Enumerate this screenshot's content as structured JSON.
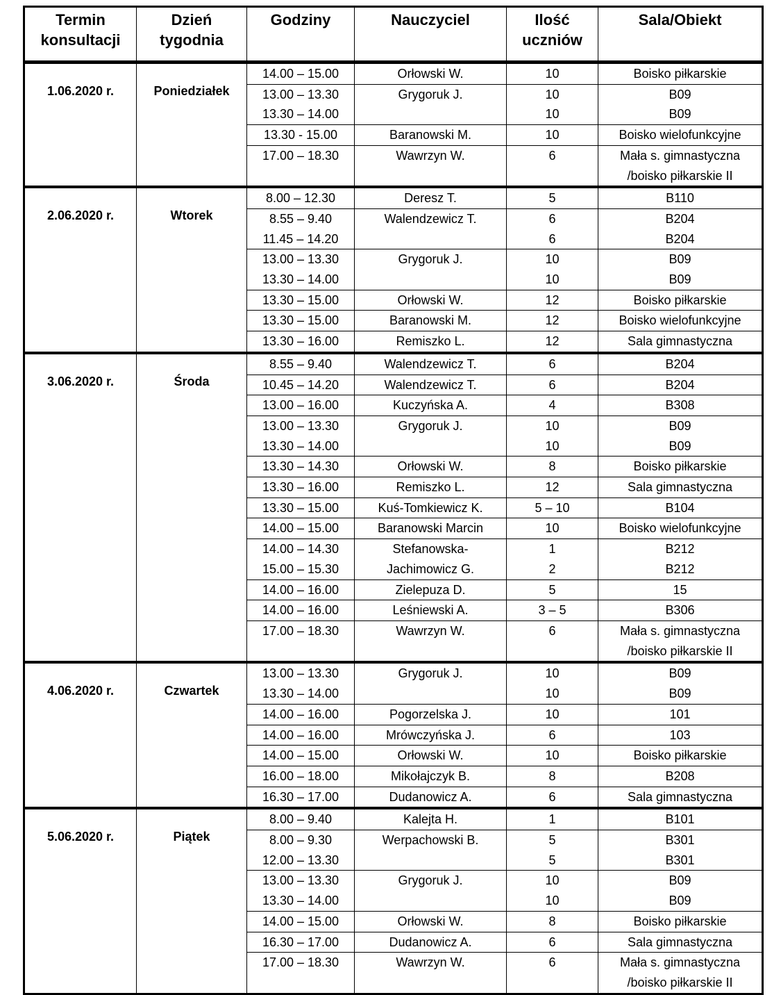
{
  "headers": [
    "Termin\nkonsultacji",
    "Dzień\ntygodnia",
    "Godziny",
    "Nauczyciel",
    "Ilość\nuczniów",
    "Sala/Obiekt"
  ],
  "sections": [
    {
      "date": "1.06.2020 r.",
      "day": "Poniedziałek",
      "groups": [
        {
          "teacher": "Orłowski W.",
          "lines": [
            {
              "hours": "14.00 – 15.00",
              "count": "10",
              "room": "Boisko piłkarskie"
            }
          ]
        },
        {
          "teacher": "Grygoruk J.",
          "lines": [
            {
              "hours": "13.00 – 13.30",
              "count": "10",
              "room": "B09"
            },
            {
              "hours": "13.30 – 14.00",
              "count": "10",
              "room": "B09"
            }
          ]
        },
        {
          "teacher": "Baranowski M.",
          "lines": [
            {
              "hours": "13.30 - 15.00",
              "count": "10",
              "room": "Boisko wielofunkcyjne"
            }
          ]
        },
        {
          "teacher": "Wawrzyn W.",
          "lines": [
            {
              "hours": "17.00 – 18.30",
              "count": "6",
              "room": "Mała s. gimnastyczna\n/boisko piłkarskie II"
            }
          ]
        }
      ]
    },
    {
      "date": "2.06.2020 r.",
      "day": "Wtorek",
      "groups": [
        {
          "teacher": "Deresz T.",
          "lines": [
            {
              "hours": "8.00 – 12.30",
              "count": "5",
              "room": "B110"
            }
          ]
        },
        {
          "teacher": "Walendzewicz T.",
          "lines": [
            {
              "hours": "8.55 – 9.40",
              "count": "6",
              "room": "B204"
            },
            {
              "hours": "11.45 – 14.20",
              "count": "6",
              "room": "B204"
            }
          ]
        },
        {
          "teacher": "Grygoruk J.",
          "lines": [
            {
              "hours": "13.00 – 13.30",
              "count": "10",
              "room": "B09"
            },
            {
              "hours": "13.30 – 14.00",
              "count": "10",
              "room": "B09"
            }
          ]
        },
        {
          "teacher": "Orłowski W.",
          "lines": [
            {
              "hours": "13.30 –  15.00",
              "count": "12",
              "room": "Boisko piłkarskie"
            }
          ]
        },
        {
          "teacher": "Baranowski M.",
          "lines": [
            {
              "hours": "13.30 – 15.00",
              "count": "12",
              "room": "Boisko wielofunkcyjne"
            }
          ]
        },
        {
          "teacher": "Remiszko L.",
          "lines": [
            {
              "hours": "13.30 – 16.00",
              "count": "12",
              "room": "Sala gimnastyczna"
            }
          ]
        }
      ]
    },
    {
      "date": "3.06.2020 r.",
      "day": "Środa",
      "groups": [
        {
          "teacher": "Walendzewicz T.",
          "lines": [
            {
              "hours": "8.55 – 9.40",
              "count": "6",
              "room": "B204"
            }
          ]
        },
        {
          "teacher": "Walendzewicz T.",
          "lines": [
            {
              "hours": "10.45 – 14.20",
              "count": "6",
              "room": "B204"
            }
          ]
        },
        {
          "teacher": "Kuczyńska A.",
          "lines": [
            {
              "hours": "13.00 – 16.00",
              "count": "4",
              "room": "B308"
            }
          ]
        },
        {
          "teacher": "Grygoruk J.",
          "lines": [
            {
              "hours": "13.00 – 13.30",
              "count": "10",
              "room": "B09"
            },
            {
              "hours": "13.30 – 14.00",
              "count": "10",
              "room": "B09"
            }
          ]
        },
        {
          "teacher": "Orłowski W.",
          "lines": [
            {
              "hours": "13.30 – 14.30",
              "count": "8",
              "room": "Boisko piłkarskie"
            }
          ]
        },
        {
          "teacher": "Remiszko L.",
          "lines": [
            {
              "hours": "13.30 – 16.00",
              "count": "12",
              "room": "Sala gimnastyczna"
            }
          ]
        },
        {
          "teacher": "Kuś-Tomkiewicz K.",
          "lines": [
            {
              "hours": "13.30 – 15.00",
              "count": "5 – 10",
              "room": "B104"
            }
          ]
        },
        {
          "teacher": "Baranowski Marcin",
          "lines": [
            {
              "hours": "14.00 – 15.00",
              "count": "10",
              "room": "Boisko wielofunkcyjne"
            }
          ]
        },
        {
          "teacher": "Stefanowska-\nJachimowicz G.",
          "lines": [
            {
              "hours": "14.00 – 14.30",
              "count": "1",
              "room": "B212"
            },
            {
              "hours": "15.00 – 15.30",
              "count": "2",
              "room": "B212"
            }
          ]
        },
        {
          "teacher": "Zielepuza D.",
          "lines": [
            {
              "hours": "14.00 – 16.00",
              "count": "5",
              "room": "15"
            }
          ]
        },
        {
          "teacher": "Leśniewski A.",
          "lines": [
            {
              "hours": "14.00 – 16.00",
              "count": "3 – 5",
              "room": "B306"
            }
          ]
        },
        {
          "teacher": "Wawrzyn W.",
          "lines": [
            {
              "hours": "17.00 – 18.30",
              "count": "6",
              "room": "Mała s. gimnastyczna\n/boisko piłkarskie II"
            }
          ]
        }
      ]
    },
    {
      "date": "4.06.2020 r.",
      "day": "Czwartek",
      "groups": [
        {
          "teacher": "Grygoruk J.",
          "lines": [
            {
              "hours": "13.00 – 13.30",
              "count": "10",
              "room": "B09"
            },
            {
              "hours": "13.30 – 14.00",
              "count": "10",
              "room": "B09"
            }
          ]
        },
        {
          "teacher": "Pogorzelska J.",
          "lines": [
            {
              "hours": "14.00 – 16.00",
              "count": "10",
              "room": "101"
            }
          ]
        },
        {
          "teacher": "Mrówczyńska J.",
          "lines": [
            {
              "hours": "14.00 – 16.00",
              "count": "6",
              "room": "103"
            }
          ]
        },
        {
          "teacher": "Orłowski W.",
          "lines": [
            {
              "hours": "14.00 – 15.00",
              "count": "10",
              "room": "Boisko piłkarskie"
            }
          ]
        },
        {
          "teacher": "Mikołajczyk B.",
          "lines": [
            {
              "hours": "16.00 – 18.00",
              "count": "8",
              "room": "B208"
            }
          ]
        },
        {
          "teacher": "Dudanowicz A.",
          "lines": [
            {
              "hours": "16.30 – 17.00",
              "count": "6",
              "room": "Sala gimnastyczna"
            }
          ]
        }
      ]
    },
    {
      "date": "5.06.2020 r.",
      "day": "Piątek",
      "groups": [
        {
          "teacher": "Kalejta H.",
          "lines": [
            {
              "hours": "8.00 – 9.40",
              "count": "1",
              "room": "B101"
            }
          ]
        },
        {
          "teacher": "Werpachowski B.",
          "lines": [
            {
              "hours": "8.00 – 9.30",
              "count": "5",
              "room": "B301"
            },
            {
              "hours": "12.00 – 13.30",
              "count": "5",
              "room": "B301"
            }
          ]
        },
        {
          "teacher": "Grygoruk J.",
          "lines": [
            {
              "hours": "13.00 – 13.30",
              "count": "10",
              "room": "B09"
            },
            {
              "hours": "13.30 – 14.00",
              "count": "10",
              "room": "B09"
            }
          ]
        },
        {
          "teacher": "Orłowski W.",
          "lines": [
            {
              "hours": "14.00 – 15.00",
              "count": "8",
              "room": "Boisko piłkarskie"
            }
          ]
        },
        {
          "teacher": "Dudanowicz A.",
          "lines": [
            {
              "hours": "16.30 – 17.00",
              "count": "6",
              "room": "Sala gimnastyczna"
            }
          ]
        },
        {
          "teacher": "Wawrzyn W.",
          "lines": [
            {
              "hours": "17.00 – 18.30",
              "count": "6",
              "room": "Mała s. gimnastyczna\n/boisko piłkarskie II"
            }
          ]
        }
      ]
    }
  ]
}
